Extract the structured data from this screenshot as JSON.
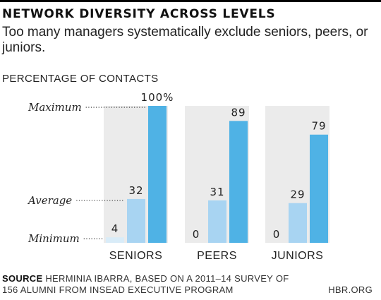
{
  "title": "NETWORK DIVERSITY ACROSS LEVELS",
  "subtitle": "Too many managers systematically exclude seniors, peers, or juniors.",
  "footer": {
    "source_label": "SOURCE",
    "source_text": "HERMINIA IBARRA, BASED ON A 2011–14 SURVEY OF 156 ALUMNI FROM INSEAD EXECUTIVE PROGRAM",
    "credit": "HBR.ORG"
  },
  "colors": {
    "minimum": "#d9ecf8",
    "average": "#a8d4f2",
    "maximum": "#4fb2e5",
    "panel": "#ebebeb",
    "text": "#222222"
  },
  "chart_data": {
    "type": "bar",
    "unit_label": "PERCENTAGE OF CONTACTS",
    "measures": [
      "Minimum",
      "Average",
      "Maximum"
    ],
    "categories": [
      "SENIORS",
      "PEERS",
      "JUNIORS"
    ],
    "series": [
      {
        "name": "Minimum",
        "values": [
          4,
          0,
          0
        ],
        "labels": [
          "4",
          "0",
          "0"
        ]
      },
      {
        "name": "Average",
        "values": [
          32,
          31,
          29
        ],
        "labels": [
          "32",
          "31",
          "29"
        ]
      },
      {
        "name": "Maximum",
        "values": [
          100,
          89,
          79
        ],
        "labels": [
          "100%",
          "89",
          "79"
        ]
      }
    ],
    "ylim": [
      0,
      100
    ],
    "grid": false,
    "legend": "left"
  }
}
